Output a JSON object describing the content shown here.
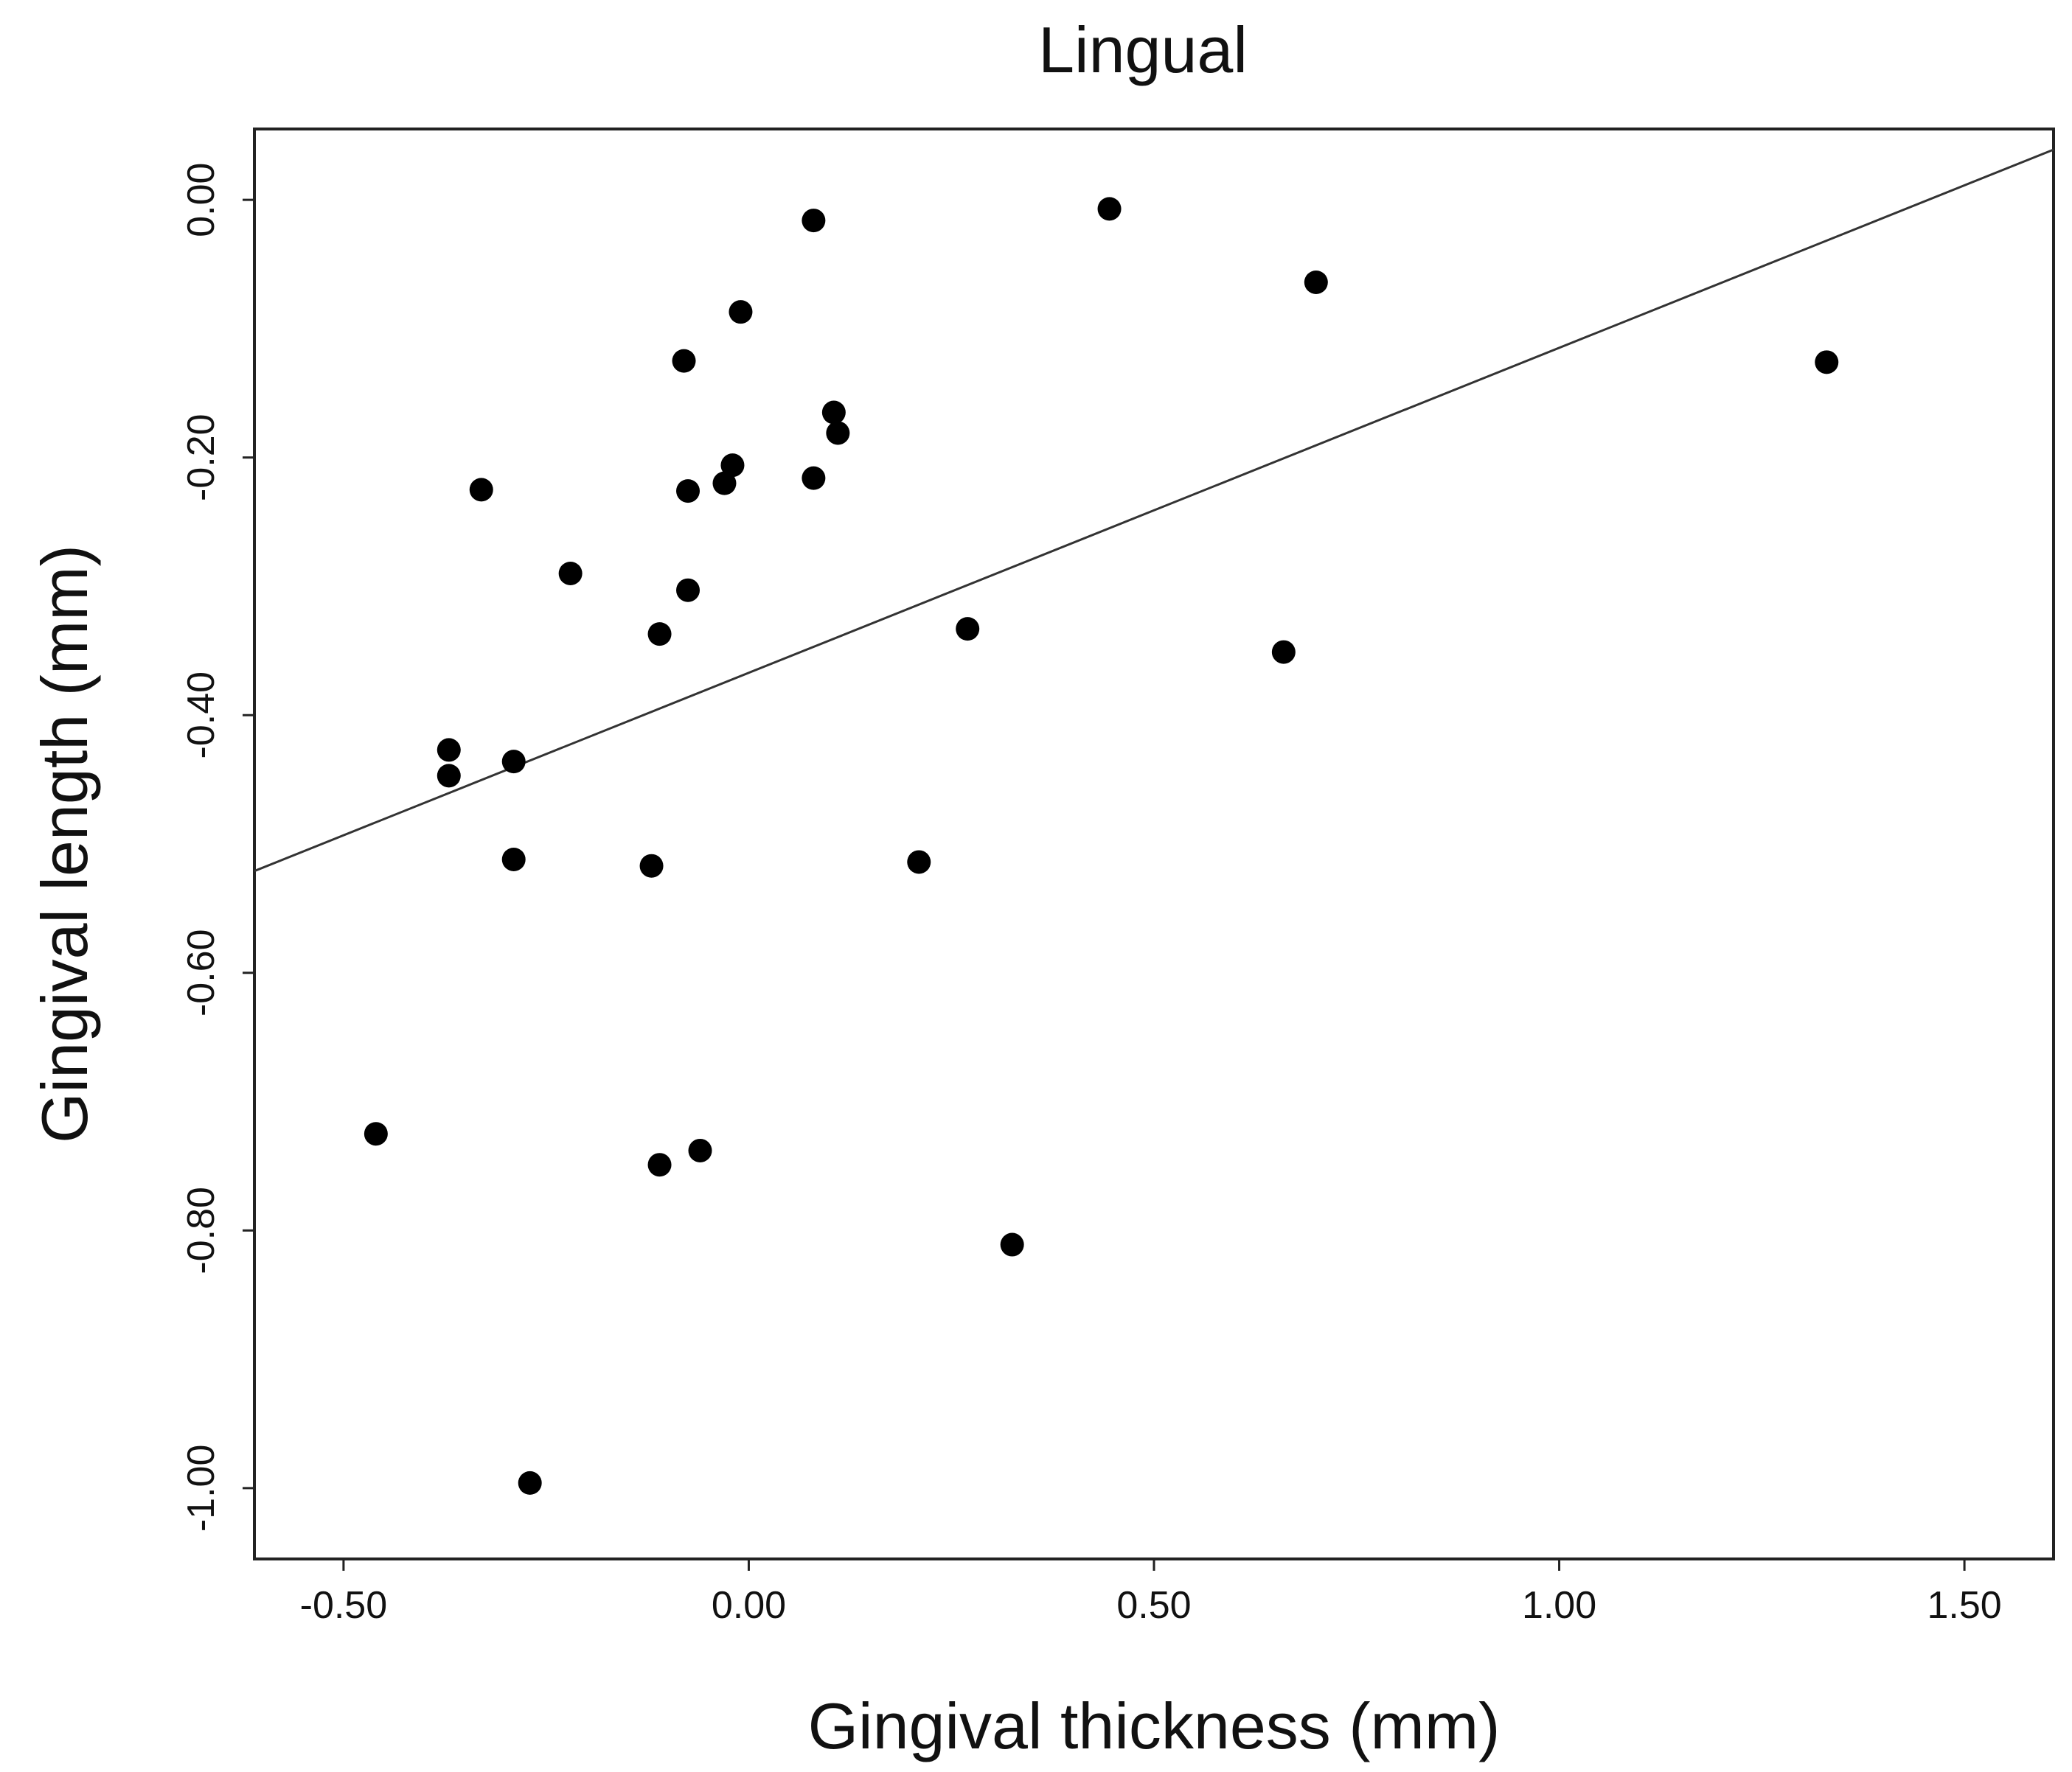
{
  "chart_data": {
    "type": "scatter",
    "title": "Lingual",
    "xlabel": "Gingival thickness (mm)",
    "ylabel": "Gingival length (mm)",
    "xlim": [
      -0.61,
      1.61
    ],
    "ylim": [
      -1.055,
      0.055
    ],
    "xticks": [
      -0.5,
      0.0,
      0.5,
      1.0,
      1.5
    ],
    "xtick_labels": [
      "-0.50",
      "0.00",
      "0.50",
      "1.00",
      "1.50"
    ],
    "yticks": [
      0.0,
      -0.2,
      -0.4,
      -0.6,
      -0.8,
      -1.0
    ],
    "ytick_labels": [
      "0.00",
      "-0.20",
      "-0.40",
      "-0.60",
      "-0.80",
      "-1.00"
    ],
    "grid": false,
    "points": [
      {
        "x": 0.08,
        "y": -0.016
      },
      {
        "x": 0.445,
        "y": -0.007
      },
      {
        "x": 0.7,
        "y": -0.064
      },
      {
        "x": -0.01,
        "y": -0.087
      },
      {
        "x": -0.08,
        "y": -0.125
      },
      {
        "x": 1.33,
        "y": -0.126
      },
      {
        "x": 0.105,
        "y": -0.165
      },
      {
        "x": 0.11,
        "y": -0.181
      },
      {
        "x": -0.02,
        "y": -0.206
      },
      {
        "x": 0.08,
        "y": -0.216
      },
      {
        "x": -0.03,
        "y": -0.22
      },
      {
        "x": -0.33,
        "y": -0.225
      },
      {
        "x": -0.075,
        "y": -0.226
      },
      {
        "x": -0.22,
        "y": -0.29
      },
      {
        "x": -0.075,
        "y": -0.303
      },
      {
        "x": -0.11,
        "y": -0.337
      },
      {
        "x": 0.27,
        "y": -0.333
      },
      {
        "x": 0.66,
        "y": -0.351
      },
      {
        "x": -0.37,
        "y": -0.427
      },
      {
        "x": -0.29,
        "y": -0.436
      },
      {
        "x": -0.37,
        "y": -0.447
      },
      {
        "x": -0.29,
        "y": -0.512
      },
      {
        "x": -0.12,
        "y": -0.517
      },
      {
        "x": 0.21,
        "y": -0.514
      },
      {
        "x": -0.46,
        "y": -0.725
      },
      {
        "x": -0.06,
        "y": -0.738
      },
      {
        "x": -0.11,
        "y": -0.749
      },
      {
        "x": 0.325,
        "y": -0.811
      },
      {
        "x": -0.27,
        "y": -0.996
      }
    ],
    "fit_line": {
      "x": [
        -0.61,
        1.61
      ],
      "y": [
        -0.521,
        0.039
      ]
    },
    "colors": {
      "points": "#000000",
      "fit_line": "#333333",
      "frame": "#222222"
    }
  }
}
